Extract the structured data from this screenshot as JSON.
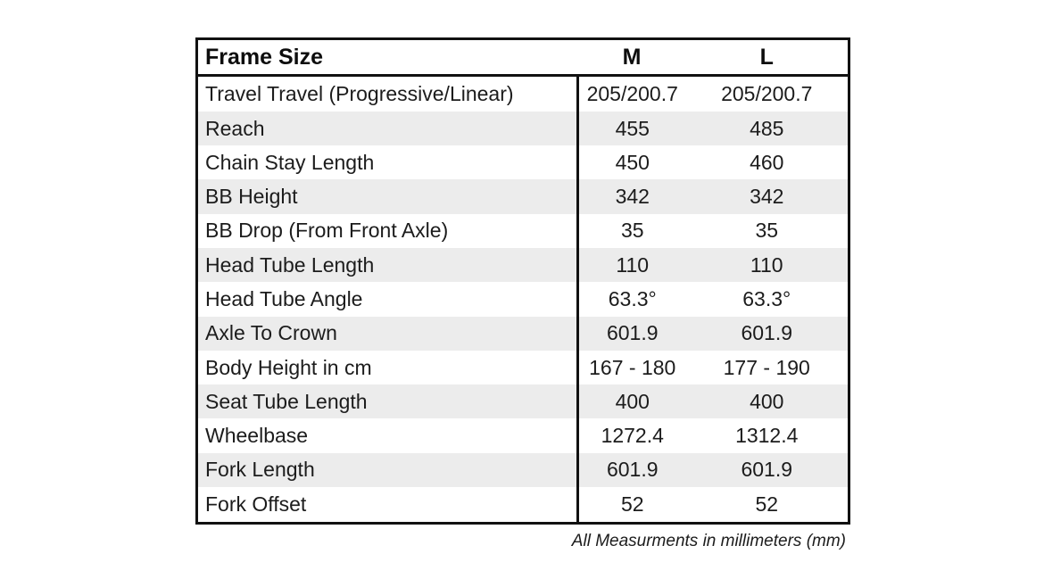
{
  "table": {
    "header": {
      "label": "Frame Size",
      "m": "M",
      "l": "L"
    },
    "rows": [
      {
        "label": "Travel Travel (Progressive/Linear)",
        "m": "205/200.7",
        "l": "205/200.7"
      },
      {
        "label": "Reach",
        "m": "455",
        "l": "485"
      },
      {
        "label": "Chain Stay Length",
        "m": "450",
        "l": "460"
      },
      {
        "label": "BB Height",
        "m": "342",
        "l": "342"
      },
      {
        "label": "BB Drop (From Front Axle)",
        "m": "35",
        "l": "35"
      },
      {
        "label": "Head Tube Length",
        "m": "110",
        "l": "110"
      },
      {
        "label": "Head Tube Angle",
        "m": "63.3°",
        "l": "63.3°"
      },
      {
        "label": "Axle To Crown",
        "m": "601.9",
        "l": "601.9"
      },
      {
        "label": "Body Height in cm",
        "m": "167 - 180",
        "l": "177 - 190"
      },
      {
        "label": "Seat Tube Length",
        "m": "400",
        "l": "400"
      },
      {
        "label": "Wheelbase",
        "m": "1272.4",
        "l": "1312.4"
      },
      {
        "label": "Fork Length",
        "m": "601.9",
        "l": "601.9"
      },
      {
        "label": "Fork Offset",
        "m": "52",
        "l": "52"
      }
    ],
    "colors": {
      "border": "#111111",
      "stripe": "#ececec",
      "text": "#1c1c1c"
    }
  },
  "footnote": "All Measurments in millimeters (mm)",
  "chart_data": {
    "type": "table",
    "title": "Frame Size",
    "columns": [
      "Frame Size",
      "M",
      "L"
    ],
    "rows": [
      [
        "Travel Travel (Progressive/Linear)",
        "205/200.7",
        "205/200.7"
      ],
      [
        "Reach",
        "455",
        "485"
      ],
      [
        "Chain Stay Length",
        "450",
        "460"
      ],
      [
        "BB Height",
        "342",
        "342"
      ],
      [
        "BB Drop (From Front Axle)",
        "35",
        "35"
      ],
      [
        "Head Tube Length",
        "110",
        "110"
      ],
      [
        "Head Tube Angle",
        "63.3°",
        "63.3°"
      ],
      [
        "Axle To Crown",
        "601.9",
        "601.9"
      ],
      [
        "Body Height in cm",
        "167 - 180",
        "177 - 190"
      ],
      [
        "Seat Tube Length",
        "400",
        "400"
      ],
      [
        "Wheelbase",
        "1272.4",
        "1312.4"
      ],
      [
        "Fork Length",
        "601.9",
        "601.9"
      ],
      [
        "Fork Offset",
        "52",
        "52"
      ]
    ],
    "note": "All Measurments in millimeters (mm)",
    "units": "mm"
  }
}
